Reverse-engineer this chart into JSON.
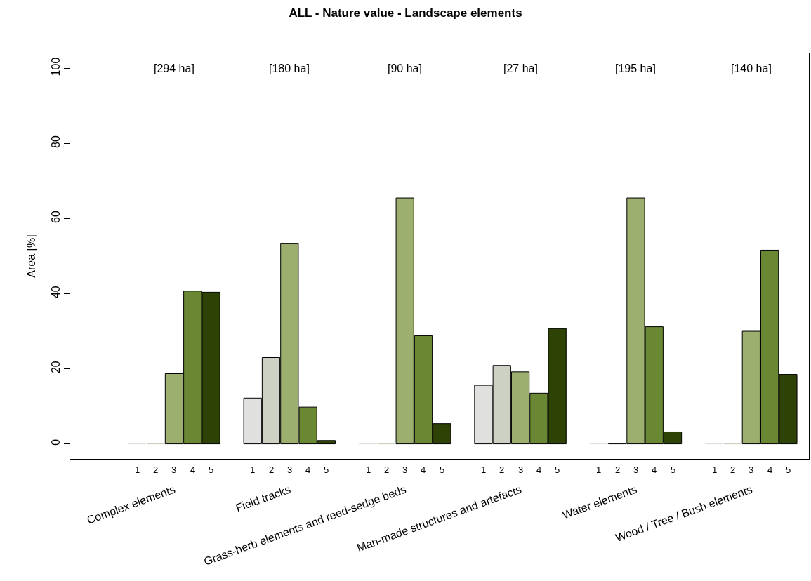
{
  "chart_data": {
    "type": "bar",
    "title": "ALL - Nature value - Landscape elements",
    "ylabel": "Area [%]",
    "categories": [
      "Complex elements",
      "Field tracks",
      "Grass-herb elements and reed-sedge beds",
      "Man-made structures and artefacts",
      "Water elements",
      "Wood / Tree / Bush elements"
    ],
    "series": [
      {
        "name": "1",
        "color": "#e0e0de",
        "values": [
          0,
          12.2,
          0,
          15.6,
          0,
          0
        ]
      },
      {
        "name": "2",
        "color": "#cdd1c3",
        "values": [
          0,
          23.0,
          0,
          20.9,
          0.2,
          0
        ]
      },
      {
        "name": "3",
        "color": "#9caf6f",
        "values": [
          18.7,
          53.3,
          65.5,
          19.2,
          65.5,
          30.0
        ]
      },
      {
        "name": "4",
        "color": "#6a8733",
        "values": [
          40.7,
          9.8,
          28.8,
          13.5,
          31.2,
          51.6
        ]
      },
      {
        "name": "5",
        "color": "#2f4205",
        "values": [
          40.4,
          0.9,
          5.4,
          30.7,
          3.2,
          18.5
        ]
      }
    ],
    "ylim": [
      -4,
      104
    ],
    "yticks": [
      0,
      20,
      40,
      60,
      80,
      100
    ],
    "annotations": [
      "[294 ha]",
      "[180 ha]",
      "[90 ha]",
      "[27 ha]",
      "[195 ha]",
      "[140 ha]"
    ]
  }
}
